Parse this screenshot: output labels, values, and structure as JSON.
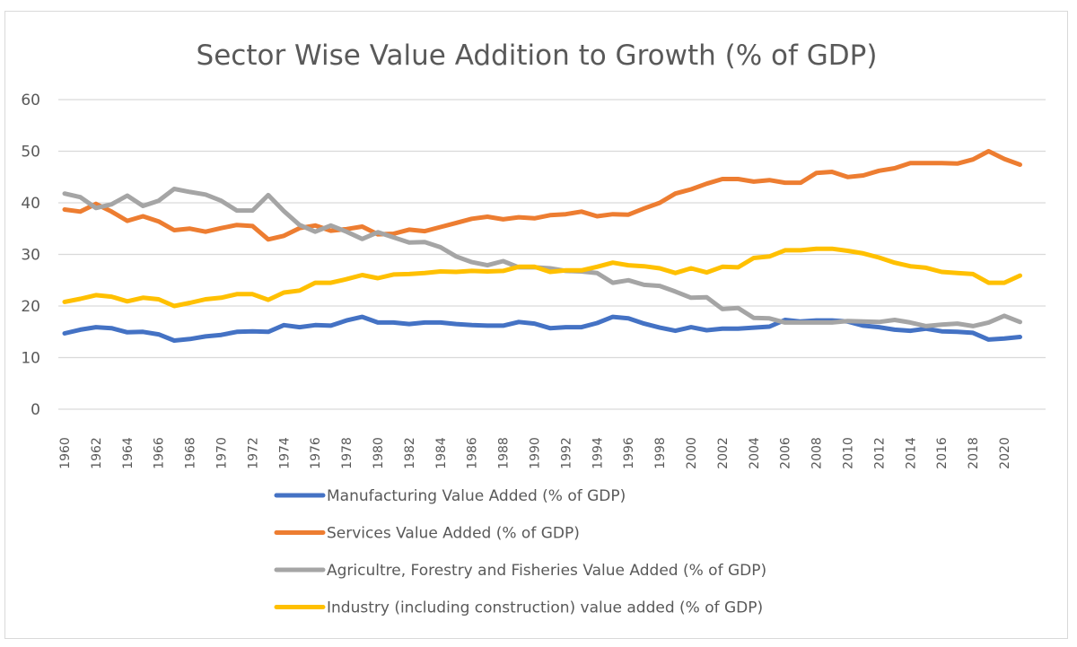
{
  "chart_data": {
    "type": "line",
    "title": "Sector Wise Value Addition to Growth (% of GDP)",
    "xlabel": "",
    "ylabel": "",
    "ylim": [
      0,
      60
    ],
    "yticks": [
      0,
      10,
      20,
      30,
      40,
      50,
      60
    ],
    "grid": true,
    "legend_position": "bottom",
    "x": [
      1960,
      1961,
      1962,
      1963,
      1964,
      1965,
      1966,
      1967,
      1968,
      1969,
      1970,
      1971,
      1972,
      1973,
      1974,
      1975,
      1976,
      1977,
      1978,
      1979,
      1980,
      1981,
      1982,
      1983,
      1984,
      1985,
      1986,
      1987,
      1988,
      1989,
      1990,
      1991,
      1992,
      1993,
      1994,
      1995,
      1996,
      1997,
      1998,
      1999,
      2000,
      2001,
      2002,
      2003,
      2004,
      2005,
      2006,
      2007,
      2008,
      2009,
      2010,
      2011,
      2012,
      2013,
      2014,
      2015,
      2016,
      2017,
      2018,
      2019,
      2020,
      2021
    ],
    "xtick_labels": [
      "1960",
      "1962",
      "1964",
      "1966",
      "1968",
      "1970",
      "1972",
      "1974",
      "1976",
      "1978",
      "1980",
      "1982",
      "1984",
      "1986",
      "1988",
      "1990",
      "1992",
      "1994",
      "1996",
      "1998",
      "2000",
      "2002",
      "2004",
      "2006",
      "2008",
      "2010",
      "2012",
      "2014",
      "2016",
      "2018",
      "2020"
    ],
    "series": [
      {
        "name": "Manufacturing Value Added (% of GDP)",
        "color": "#4472c4",
        "values": [
          14.7,
          15.4,
          15.9,
          15.7,
          14.9,
          15.0,
          14.5,
          13.3,
          13.6,
          14.1,
          14.4,
          15.0,
          15.1,
          15.0,
          16.3,
          15.9,
          16.3,
          16.2,
          17.2,
          17.9,
          16.8,
          16.8,
          16.5,
          16.8,
          16.8,
          16.5,
          16.3,
          16.2,
          16.2,
          16.9,
          16.6,
          15.7,
          15.9,
          15.9,
          16.7,
          17.9,
          17.6,
          16.6,
          15.8,
          15.2,
          15.9,
          15.3,
          15.6,
          15.6,
          15.8,
          16.0,
          17.3,
          17.0,
          17.2,
          17.2,
          17.0,
          16.2,
          15.9,
          15.4,
          15.2,
          15.6,
          15.1,
          15.0,
          14.8,
          13.5,
          13.7,
          14.0
        ]
      },
      {
        "name": "Services Value Added (% of GDP)",
        "color": "#ed7d31",
        "values": [
          38.7,
          38.3,
          39.8,
          38.3,
          36.5,
          37.4,
          36.4,
          34.7,
          35.0,
          34.4,
          35.1,
          35.7,
          35.5,
          32.9,
          33.6,
          35.1,
          35.6,
          34.6,
          34.9,
          35.4,
          33.9,
          34.0,
          34.8,
          34.5,
          35.3,
          36.1,
          36.9,
          37.3,
          36.8,
          37.2,
          37.0,
          37.6,
          37.8,
          38.3,
          37.4,
          37.8,
          37.7,
          38.9,
          40.0,
          41.8,
          42.6,
          43.7,
          44.6,
          44.6,
          44.1,
          44.4,
          43.9,
          43.9,
          45.8,
          46.0,
          45.0,
          45.3,
          46.2,
          46.7,
          47.7,
          47.7,
          47.7,
          47.6,
          48.4,
          50.0,
          48.5,
          47.4
        ]
      },
      {
        "name": "Agricultre, Forestry and Fisheries Value Added (% of GDP)",
        "color": "#a5a5a5",
        "values": [
          41.8,
          41.1,
          39.0,
          39.7,
          41.4,
          39.4,
          40.4,
          42.7,
          42.1,
          41.6,
          40.4,
          38.5,
          38.5,
          41.5,
          38.4,
          35.7,
          34.4,
          35.6,
          34.4,
          33.0,
          34.3,
          33.3,
          32.3,
          32.4,
          31.4,
          29.6,
          28.5,
          27.9,
          28.7,
          27.5,
          27.5,
          27.3,
          26.8,
          26.7,
          26.4,
          24.5,
          25.0,
          24.1,
          23.9,
          22.8,
          21.6,
          21.7,
          19.4,
          19.6,
          17.7,
          17.6,
          16.8,
          16.8,
          16.8,
          16.8,
          17.1,
          17.0,
          16.9,
          17.3,
          16.8,
          16.1,
          16.4,
          16.6,
          16.1,
          16.8,
          18.1,
          16.9
        ]
      },
      {
        "name": "Industry (including construction) value added (% of GDP)",
        "color": "#ffc000",
        "values": [
          20.8,
          21.4,
          22.1,
          21.8,
          20.9,
          21.6,
          21.3,
          20.0,
          20.6,
          21.3,
          21.6,
          22.3,
          22.3,
          21.2,
          22.6,
          23.0,
          24.5,
          24.5,
          25.2,
          26.0,
          25.4,
          26.1,
          26.2,
          26.4,
          26.7,
          26.6,
          26.8,
          26.7,
          26.8,
          27.6,
          27.6,
          26.6,
          26.9,
          26.9,
          27.6,
          28.4,
          27.9,
          27.7,
          27.3,
          26.4,
          27.3,
          26.5,
          27.6,
          27.5,
          29.3,
          29.6,
          30.8,
          30.8,
          31.1,
          31.1,
          30.7,
          30.2,
          29.4,
          28.4,
          27.7,
          27.4,
          26.6,
          26.4,
          26.2,
          24.5,
          24.5,
          25.9
        ]
      }
    ]
  }
}
